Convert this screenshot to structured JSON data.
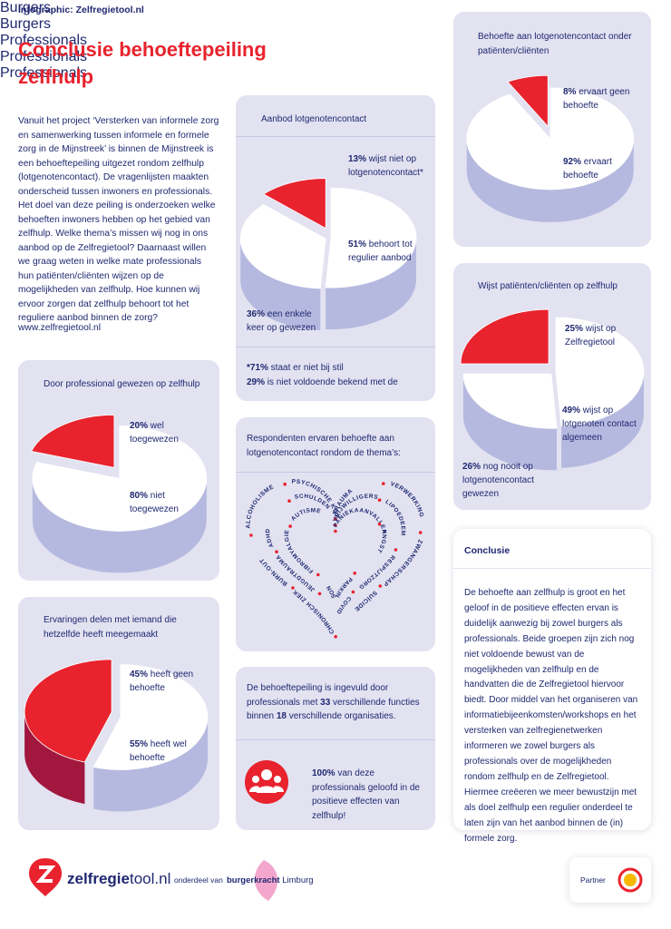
{
  "header": {
    "label": "Infographic: Zelfregietool.nl",
    "title_line_1": "Conclusie behoeftepeiling",
    "title_line_2": "zelfhulp",
    "intro": "Vanuit het project ‘Versterken van informele zorg en samenwerking tussen informele en formele zorg in de Mijnstreek’ is binnen de Mijnstreek is een behoeftepeiling uitgezet rondom zelfhulp (lotgenotencontact). De vragenlijsten maakten onderscheid tussen inwoners en professionals. Het doel van deze peiling is onderzoeken welke behoeften inwoners hebben op het gebied van zelfhulp. Welke thema’s missen wij nog in ons aanbod op de Zelfregietool? Daarnaast willen we graag weten in welke mate professionals hun patiënten/cliënten wijzen op de mogelijkheden van zelfhulp. Hoe kunnen wij ervoor zorgen dat zelfhulp behoort tot het reguliere aanbod binnen de zorg?",
    "url": "www.zelfregietool.nl"
  },
  "pies": [
    {
      "tag": "Burgers",
      "question": "Door professional gewezen op zelfhulp",
      "slices": [
        {
          "value": 20,
          "label": "20%",
          "text": "wel toegewezen",
          "color": "#e8232e",
          "side_color": "#a2173e"
        },
        {
          "value": 80,
          "label": "80%",
          "text": "niet toegewezen",
          "color": "#ffffff",
          "side_color": "#b6b9df"
        }
      ]
    },
    {
      "tag": "Burgers",
      "question": "Ervaringen delen met iemand die hetzelfde heeft meegemaakt",
      "slices": [
        {
          "value": 45,
          "label": "45%",
          "text": "heeft geen behoefte",
          "color": "#e8232e",
          "side_color": "#a2173e"
        },
        {
          "value": 55,
          "label": "55%",
          "text": "heeft wel behoefte",
          "color": "#ffffff",
          "side_color": "#b6b9df"
        }
      ]
    },
    {
      "tag": "Professionals",
      "question": "Aanbod lotgenotencontact",
      "slices": [
        {
          "value": 13,
          "label": "13%",
          "text": "wijst niet op lotgenotencontact*",
          "color": "#e8232e",
          "side_color": "#a2173e"
        },
        {
          "value": 51,
          "label": "51%",
          "text": "behoort tot regulier aanbod",
          "color": "#ffffff",
          "side_color": "#b6b9df"
        },
        {
          "value": 36,
          "label": "36%",
          "text": "een enkele keer op gewezen",
          "color": "#ffffff",
          "side_color": "#b6b9df"
        }
      ]
    },
    {
      "tag": "Professionals",
      "question": "Behoefte aan lotgenotencontact onder patiënten/cliënten",
      "slices": [
        {
          "value": 8,
          "label": "8%",
          "text": "ervaart geen behoefte",
          "color": "#e8232e",
          "side_color": "#a2173e"
        },
        {
          "value": 92,
          "label": "92%",
          "text": "ervaart behoefte",
          "color": "#ffffff",
          "side_color": "#b6b9df"
        }
      ]
    },
    {
      "tag": "Professionals",
      "question": "Wijst patiënten/cliënten op zelfhulp",
      "slices": [
        {
          "value": 25,
          "label": "25%",
          "text": "wijst op Zelfregietool",
          "color": "#e8232e",
          "side_color": "#a2173e"
        },
        {
          "value": 49,
          "label": "49%",
          "text": "wijst op lotgenoten contact algemeen",
          "color": "#ffffff",
          "side_color": "#b6b9df"
        },
        {
          "value": 26,
          "label": "26%",
          "text": "nog nooit op lotgenotencontact gewezen",
          "color": "#ffffff",
          "side_color": "#b6b9df"
        }
      ]
    }
  ],
  "footnote": [
    {
      "bold": "*71%",
      "rest": " staat er niet bij stil"
    },
    {
      "bold": "29%",
      "rest": " is niet voldoende bekend met de"
    }
  ],
  "themes": {
    "title": "Respondenten ervaren behoefte aan lotgenotencontact rondom de thema’s:",
    "rings": [
      [
        "TRAUMA",
        "VERWERKING",
        "ZWANGERSCHAP",
        "SUÏCIDE",
        "CHRONISCH ZIEK",
        "BURN-OUT",
        "ALCOHOLISME",
        "PSYCHISCHE KWETSBAARHEID"
      ],
      [
        "VRIJWILLIGERS",
        "LIPOEDEEM",
        "RESPIJTZORG",
        "COVID",
        "JEUGDTRAUMA",
        "ADHD",
        "SCHULDEN"
      ],
      [
        "PANIEKAANVALLEN",
        "ANGST",
        "PARKINSON",
        "FIBROMYALGIE",
        "AUTISME"
      ]
    ]
  },
  "stats": {
    "text_1": "De behoeftepeiling is ingevuld door professionals met ",
    "functions": 33,
    "text_2": " verschillende functies binnen ",
    "organisations": 18,
    "text_3": " verschillende organisaties.",
    "belief_bold": "100%",
    "belief_rest": " van deze professionals geloofd in de positieve effecten van zelfhulp!"
  },
  "conclusion": {
    "title": "Conclusie",
    "text": "De behoefte aan zelfhulp is groot en het geloof in de positieve effecten ervan is duidelijk aanwezig bij zowel burgers als professionals. Beide groepen zijn zich nog niet voldoende bewust van de mogelijkheden van zelfhulp en de handvatten die de Zelfregietool hiervoor biedt. Door middel van het organiseren van informatiebijeenkomsten/workshops en het versterken van zelfregienetwerken informeren we zowel burgers als professionals over de mogelijkheden rondom zelfhulp en de Zelfregietool. Hiermee creëeren we meer bewustzijn met als doel zelfhulp een regulier onderdeel te laten zijn van het aanbod binnen de (in) formele zorg."
  },
  "footer": {
    "logo_bold": "zelfregie",
    "logo_rest": "tool.nl",
    "part_of": "onderdeel van",
    "org_bold": "burgerkracht",
    "org_rest": " Limburg",
    "partner": "Partner"
  }
}
